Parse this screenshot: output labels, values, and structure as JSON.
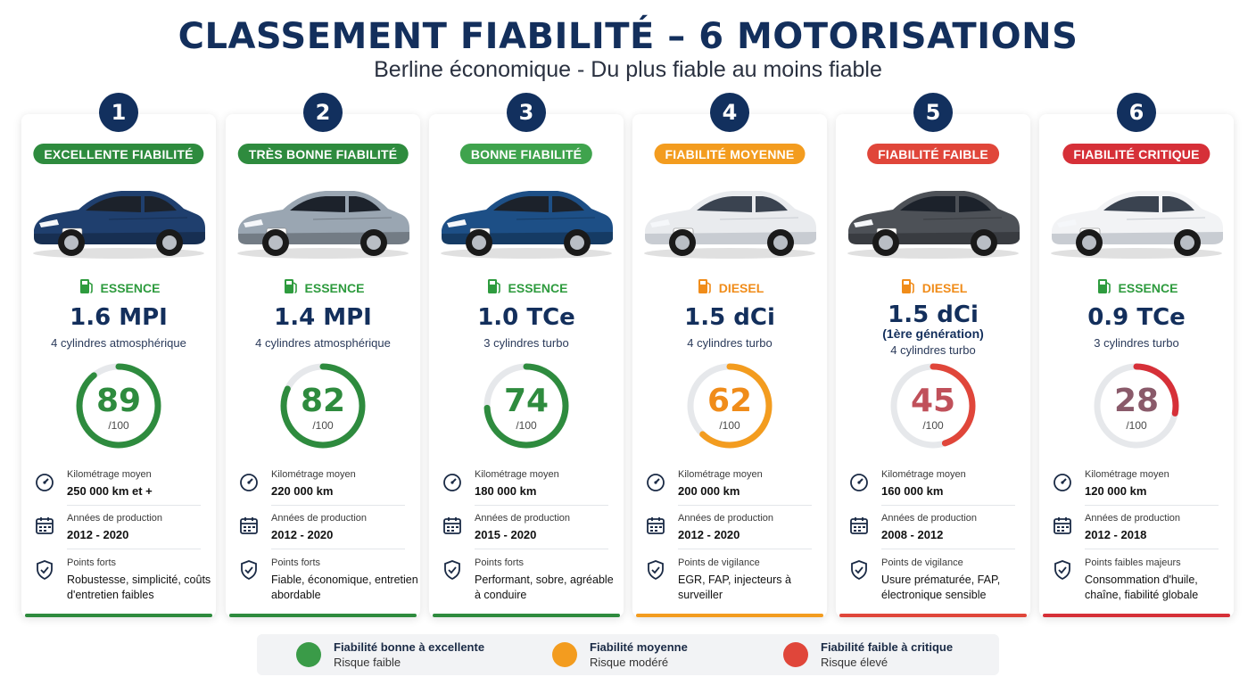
{
  "header": {
    "title": "CLASSEMENT FIABILITÉ – 6 MOTORISATIONS",
    "subtitle": "Berline économique - Du plus fiable au moins fiable"
  },
  "colors": {
    "dark_green": "#2e8b3e",
    "green": "#3fa34d",
    "orange": "#f39c1f",
    "red": "#e0463a",
    "red_dark": "#d63038",
    "navy": "#132f5c"
  },
  "cards": [
    {
      "rank": "1",
      "badge": "EXCELLENTE FIABILITÉ",
      "badge_color": "#2e8b3e",
      "car_color": "#1f3f6e",
      "fuel": "ESSENCE",
      "fuel_color": "#2e9b3e",
      "engine": "1.6 MPI",
      "engine_sub": "",
      "engine_desc": "4 cylindres atmosphérique",
      "score": "89",
      "score_value": 89,
      "score_max": "/100",
      "gauge_color": "#2e8b3e",
      "score_color": "#2e8b3e",
      "km_label": "Kilométrage moyen",
      "km": "250 000 km et +",
      "years_label": "Années de production",
      "years": "2012 - 2020",
      "points_label": "Points forts",
      "points": "Robustesse, simplicité, coûts d'entretien faibles",
      "bar_color": "#2e8b3e"
    },
    {
      "rank": "2",
      "badge": "TRÈS BONNE FIABILITÉ",
      "badge_color": "#2e8b3e",
      "car_color": "#9aa6b2",
      "fuel": "ESSENCE",
      "fuel_color": "#2e9b3e",
      "engine": "1.4 MPI",
      "engine_sub": "",
      "engine_desc": "4 cylindres atmosphérique",
      "score": "82",
      "score_value": 82,
      "score_max": "/100",
      "gauge_color": "#2e8b3e",
      "score_color": "#2e8b3e",
      "km_label": "Kilométrage moyen",
      "km": "220 000 km",
      "years_label": "Années de production",
      "years": "2012 - 2020",
      "points_label": "Points forts",
      "points": "Fiable, économique, entretien abordable",
      "bar_color": "#2e8b3e"
    },
    {
      "rank": "3",
      "badge": "BONNE FIABILITÉ",
      "badge_color": "#3fa34d",
      "car_color": "#1d4f86",
      "fuel": "ESSENCE",
      "fuel_color": "#2e9b3e",
      "engine": "1.0 TCe",
      "engine_sub": "",
      "engine_desc": "3 cylindres turbo",
      "score": "74",
      "score_value": 74,
      "score_max": "/100",
      "gauge_color": "#2e8b3e",
      "score_color": "#2e8b3e",
      "km_label": "Kilométrage moyen",
      "km": "180 000 km",
      "years_label": "Années de production",
      "years": "2015 - 2020",
      "points_label": "Points forts",
      "points": "Performant, sobre, agréable à conduire",
      "bar_color": "#2e8b3e"
    },
    {
      "rank": "4",
      "badge": "FIABILITÉ MOYENNE",
      "badge_color": "#f39c1f",
      "car_color": "#e9ebee",
      "fuel": "DIESEL",
      "fuel_color": "#f08c1a",
      "engine": "1.5 dCi",
      "engine_sub": "",
      "engine_desc": "4 cylindres turbo",
      "score": "62",
      "score_value": 62,
      "score_max": "/100",
      "gauge_color": "#f39c1f",
      "score_color": "#f08c1a",
      "km_label": "Kilométrage moyen",
      "km": "200 000 km",
      "years_label": "Années de production",
      "years": "2012 - 2020",
      "points_label": "Points de vigilance",
      "points": "EGR, FAP, injecteurs à surveiller",
      "bar_color": "#f39c1f"
    },
    {
      "rank": "5",
      "badge": "FIABILITÉ FAIBLE",
      "badge_color": "#e0463a",
      "car_color": "#4d5157",
      "fuel": "DIESEL",
      "fuel_color": "#f08c1a",
      "engine": "1.5 dCi",
      "engine_sub": "(1ère génération)",
      "engine_desc": "4 cylindres turbo",
      "score": "45",
      "score_value": 45,
      "score_max": "/100",
      "gauge_color": "#e0463a",
      "score_color": "#c0505a",
      "km_label": "Kilométrage moyen",
      "km": "160 000 km",
      "years_label": "Années de production",
      "years": "2008 - 2012",
      "points_label": "Points de vigilance",
      "points": "Usure prématurée, FAP, électronique sensible",
      "bar_color": "#e0463a"
    },
    {
      "rank": "6",
      "badge": "FIABILITÉ CRITIQUE",
      "badge_color": "#d63038",
      "car_color": "#f2f3f5",
      "fuel": "ESSENCE",
      "fuel_color": "#2e9b3e",
      "engine": "0.9 TCe",
      "engine_sub": "",
      "engine_desc": "3 cylindres turbo",
      "score": "28",
      "score_value": 28,
      "score_max": "/100",
      "gauge_color": "#d63038",
      "score_color": "#8a5a6a",
      "km_label": "Kilométrage moyen",
      "km": "120 000 km",
      "years_label": "Années de production",
      "years": "2012 - 2018",
      "points_label": "Points faibles majeurs",
      "points": "Consommation d'huile, chaîne, fiabilité globale",
      "bar_color": "#d63038"
    }
  ],
  "legend": [
    {
      "title": "Fiabilité bonne à excellente",
      "sub": "Risque faible",
      "color": "#3a9b48"
    },
    {
      "title": "Fiabilité moyenne",
      "sub": "Risque modéré",
      "color": "#f39c1f"
    },
    {
      "title": "Fiabilité faible à critique",
      "sub": "Risque élevé",
      "color": "#e0463a"
    }
  ]
}
